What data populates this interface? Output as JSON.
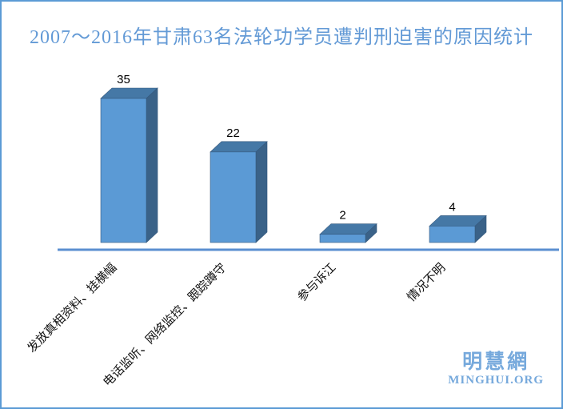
{
  "chart_data": {
    "type": "bar",
    "style": "3d-column",
    "title": "2007～2016年甘肃63名法轮功学员遭判刑迫害的原因统计",
    "categories": [
      "发放真相资料、挂横幅",
      "电话监听、网络监控、跟踪蹲守",
      "参与诉江",
      "情况不明"
    ],
    "values": [
      35,
      22,
      2,
      4
    ],
    "xlabel": "",
    "ylabel": "",
    "ylim": [
      0,
      35
    ],
    "data_labels": true,
    "legend": false,
    "grid": false,
    "category_label_rotation_deg": 45,
    "colors": {
      "bar_front": "#5B9AD5",
      "bar_top": "#4578A6",
      "bar_side": "#3A6288",
      "bar_edge": "#35597E",
      "axis_line": "#5B8FD0",
      "title_text": "#639AD6",
      "border": "#5B9BD5",
      "label_text": "#000000",
      "logo_text": "#76A9DC"
    }
  },
  "watermark": {
    "cjk": "明慧網",
    "latin": "MINGHUI.ORG"
  }
}
